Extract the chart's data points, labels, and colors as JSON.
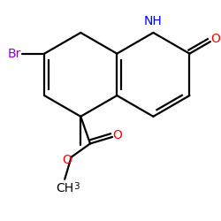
{
  "bg_color": "#ffffff",
  "bond_color": "#000000",
  "bond_width": 1.6,
  "atom_colors": {
    "Br": "#9400D3",
    "N": "#0000FF",
    "O": "#FF0000",
    "C": "#000000"
  },
  "font_size_atom": 10,
  "font_size_sub": 7.5
}
